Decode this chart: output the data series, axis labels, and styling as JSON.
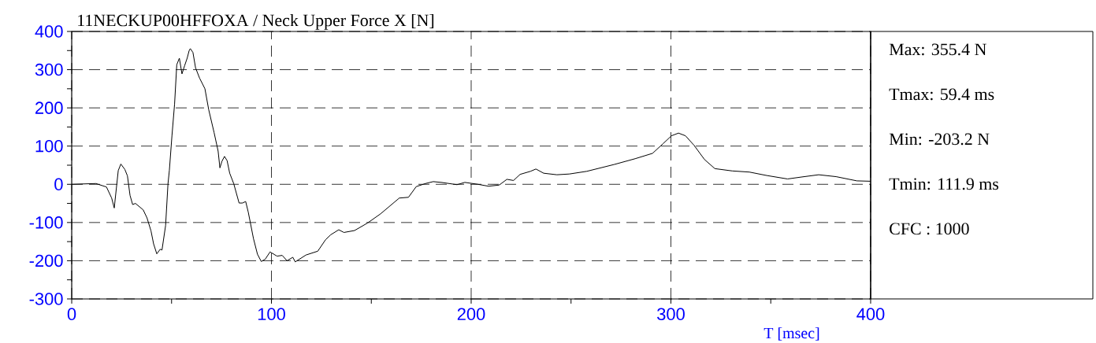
{
  "chart_data": {
    "type": "line",
    "title": "11NECKUP00HFFOXA / Neck Upper Force X [N]",
    "xlabel": "T [msec]",
    "annotations": [
      "Max:  355.4 N",
      "Tmax:  59.4 ms",
      "Min: -203.2 N",
      "Tmin: 111.9 ms",
      "CFC : 1000"
    ],
    "xlim": [
      0,
      400
    ],
    "ylim": [
      -300,
      400
    ],
    "xticks": [
      0,
      100,
      200,
      300,
      400
    ],
    "yticks": [
      -300,
      -200,
      -100,
      0,
      100,
      200,
      300,
      400
    ],
    "grid": true,
    "line_style": "solid",
    "marker": "none",
    "series": [
      {
        "color": "#000000",
        "x": [
          0,
          12.1,
          17.4,
          20,
          21.3,
          23.3,
          24.6,
          26.6,
          27.9,
          29.2,
          30.5,
          31.9,
          35.8,
          37.7,
          39.7,
          41,
          42.6,
          44.3,
          45.2,
          47,
          48.2,
          48.9,
          50.2,
          51.5,
          52.6,
          53.9,
          55.2,
          56.5,
          57.8,
          58.8,
          59.4,
          60.7,
          62,
          64,
          66.7,
          68.6,
          71.3,
          73.3,
          74.2,
          75.2,
          76.5,
          77.8,
          79.1,
          81.1,
          83.8,
          85.5,
          87.1,
          88.4,
          91,
          93,
          94.9,
          96.9,
          99.3,
          102.8,
          105.4,
          107.8,
          110.7,
          111.9,
          117.3,
          123.2,
          127.1,
          129.7,
          133.7,
          136.3,
          141.6,
          148.2,
          154.7,
          164,
          168.6,
          172.5,
          177.1,
          181,
          185,
          192.9,
          196.8,
          203.4,
          208.7,
          214,
          217.9,
          221.2,
          224.5,
          229.7,
          232.4,
          236.3,
          242.9,
          249.2,
          257.9,
          271.7,
          282.1,
          290.8,
          296,
          300.3,
          303.8,
          307.3,
          311.6,
          316.8,
          322,
          330.7,
          339.3,
          348,
          358.4,
          365.3,
          374,
          382.7,
          393.1,
          400
        ],
        "values": [
          0,
          2,
          -7,
          -36,
          -62,
          36,
          53,
          39,
          22,
          -29,
          -53,
          -50,
          -67,
          -88,
          -122,
          -156,
          -182,
          -170,
          -172,
          -108,
          1,
          37,
          128,
          210,
          313,
          330,
          289,
          310,
          330,
          350,
          355,
          345,
          305,
          278,
          250,
          195,
          135,
          87,
          43,
          60,
          73,
          62,
          29,
          2,
          -49,
          -49,
          -45,
          -73,
          -142,
          -183,
          -202,
          -196,
          -177,
          -188,
          -186,
          -200,
          -191,
          -203,
          -185,
          -175,
          -145,
          -132,
          -119,
          -126,
          -121,
          -101,
          -77,
          -36,
          -34,
          -6,
          2,
          7,
          5,
          -1,
          5,
          0,
          -5,
          -2,
          13,
          10,
          26,
          34,
          40,
          29,
          25,
          27,
          34,
          52,
          67,
          81,
          106,
          127,
          134,
          127,
          102,
          65,
          41,
          35,
          32,
          23,
          14,
          19,
          25,
          20,
          9,
          8
        ]
      }
    ]
  }
}
